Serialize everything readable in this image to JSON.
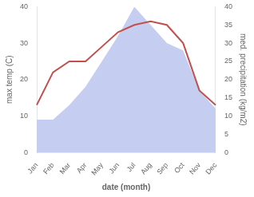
{
  "chart_data": {
    "type": "line",
    "categories": [
      "Jan",
      "Feb",
      "Mar",
      "Apr",
      "May",
      "Jun",
      "Jul",
      "Aug",
      "Sep",
      "Oct",
      "Nov",
      "Dec"
    ],
    "xlabel": "date (month)",
    "ylabel": "max temp (C)",
    "y2label": "med. precipitation (kg/m2)",
    "series": [
      {
        "type": "line",
        "color": "#c0504d",
        "values": [
          13,
          22,
          25,
          25,
          29,
          33,
          35,
          36,
          35,
          30,
          17,
          13
        ]
      },
      {
        "type": "area",
        "axis": "y2",
        "color": "#c5cef0",
        "values": [
          9,
          9,
          13,
          18,
          25,
          32,
          40,
          35,
          30,
          28,
          17,
          12
        ]
      }
    ],
    "ylim": [
      0,
      40
    ],
    "yticks": [
      0,
      10,
      20,
      30,
      40
    ],
    "y2lim": [
      0,
      40
    ],
    "y2ticks": [
      0,
      5,
      10,
      15,
      20,
      25,
      30,
      35,
      40
    ],
    "grid": false
  }
}
